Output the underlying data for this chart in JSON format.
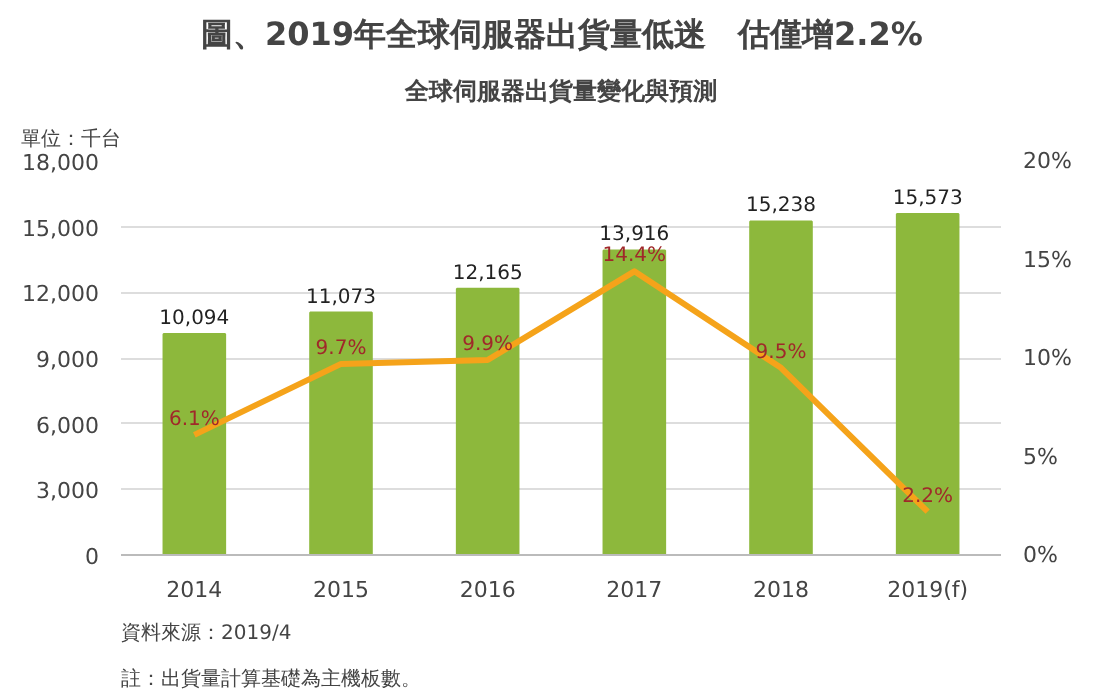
{
  "chart_data": {
    "type": "bar",
    "title": "圖、2019年全球伺服器出貨量低迷　估僅增2.2%",
    "subtitle": "全球伺服器出貨量變化與預測",
    "annotations": [
      "單位：千台",
      "註：出貨量計算基礎為主機板數。",
      "資料來源：2019/4"
    ],
    "categories": [
      "2014",
      "2015",
      "2016",
      "2017",
      "2018",
      "2019(f)"
    ],
    "series": [
      {
        "color": "#8db83c",
        "values": [
          10094,
          11073,
          12165,
          13916,
          15238,
          15573
        ],
        "value_labels": [
          "10,094",
          "11,073",
          "12,165",
          "13,916",
          "15,238",
          "15,573"
        ]
      },
      {
        "type": "line",
        "axis": "y2",
        "color": "#f5a31a",
        "values": [
          6.1,
          9.7,
          9.9,
          14.4,
          9.5,
          2.2
        ],
        "value_labels": [
          "6.1%",
          "9.7%",
          "9.9%",
          "14.4%",
          "9.5%",
          "2.2%"
        ]
      }
    ],
    "ylim": [
      0,
      18000
    ],
    "yticks": [
      {
        "value": 0,
        "label": "0"
      },
      {
        "value": 3000,
        "label": "3,000"
      },
      {
        "value": 6000,
        "label": "6,000"
      },
      {
        "value": 9000,
        "label": "9,000"
      },
      {
        "value": 12000,
        "label": "12,000"
      },
      {
        "value": 15000,
        "label": "15,000"
      },
      {
        "value": 18000,
        "label": "18,000"
      }
    ],
    "y2lim": [
      0,
      20
    ],
    "y2ticks": [
      {
        "value": 0,
        "label": "0%"
      },
      {
        "value": 5,
        "label": "5%"
      },
      {
        "value": 10,
        "label": "10%"
      },
      {
        "value": 15,
        "label": "15%"
      },
      {
        "value": 20,
        "label": "20%"
      }
    ],
    "grid": "y"
  }
}
